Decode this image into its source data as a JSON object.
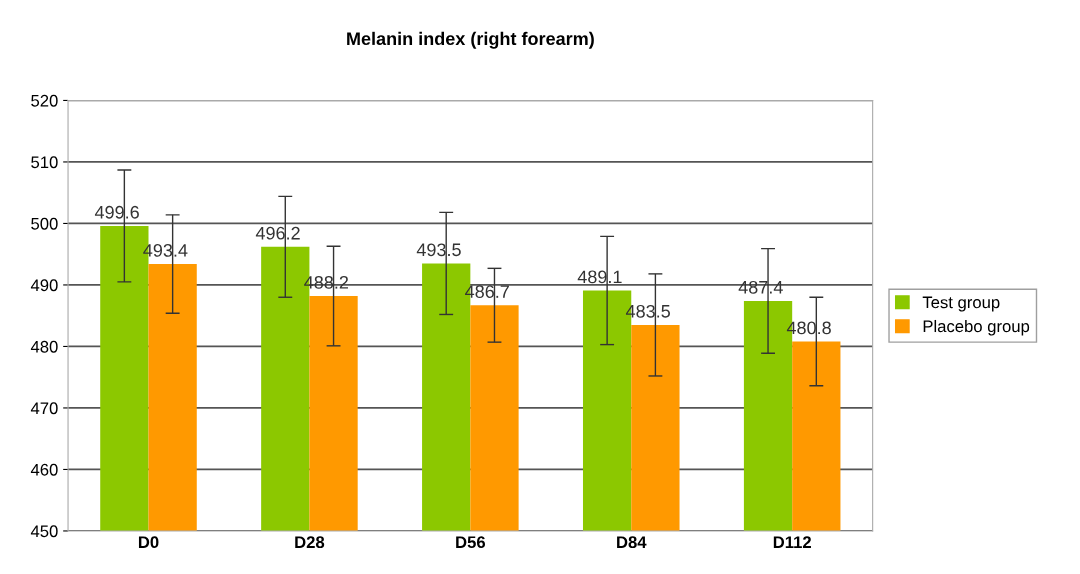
{
  "chart_data": {
    "type": "bar",
    "title": "Melanin index (right forearm)",
    "categories": [
      "D0",
      "D28",
      "D56",
      "D84",
      "D112"
    ],
    "series": [
      {
        "name": "Test group",
        "color": "#8cc800",
        "values": [
          499.6,
          496.2,
          493.5,
          489.1,
          487.4
        ],
        "errors": [
          9.1,
          8.2,
          8.3,
          8.8,
          8.5
        ]
      },
      {
        "name": "Placebo group",
        "color": "#ff9900",
        "values": [
          493.4,
          488.2,
          486.7,
          483.5,
          480.8
        ],
        "errors": [
          8.0,
          8.1,
          6.0,
          8.3,
          7.2
        ]
      }
    ],
    "ylim": [
      450,
      520
    ],
    "yticks": [
      450,
      460,
      470,
      480,
      490,
      500,
      510,
      520
    ],
    "grid": "y",
    "legend": "right",
    "data_labels": true
  }
}
